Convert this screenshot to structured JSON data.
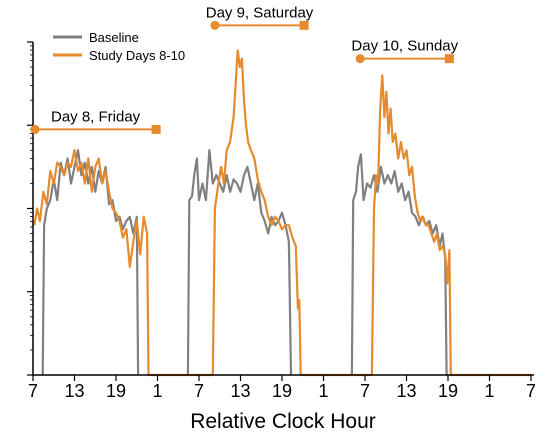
{
  "colors": {
    "baseline": "#808080",
    "study": "#E68A2E",
    "axis": "#000000"
  },
  "chart_data": {
    "type": "line",
    "title": "",
    "xlabel": "Relative Clock Hour",
    "ylabel": "",
    "x_tick_labels": [
      "7",
      "13",
      "19",
      "1",
      "7",
      "13",
      "19",
      "1",
      "7",
      "13",
      "19",
      "1",
      "7"
    ],
    "xlim": [
      0,
      72
    ],
    "y_scale": "log",
    "ylim": [
      0,
      4
    ],
    "y_tick_values": [
      0,
      1,
      2,
      3,
      4
    ],
    "y_tick_labels": [],
    "grid": false,
    "legend": {
      "position": "top-left",
      "entries": [
        "Baseline",
        "Study Days 8-10"
      ]
    },
    "annotations": [
      {
        "text": "Day 8, Friday",
        "x_start": 0.3,
        "x_end": 17.8,
        "y": 2.95
      },
      {
        "text": "Day 9, Saturday",
        "x_start": 26.3,
        "x_end": 39.2,
        "y": 4.2
      },
      {
        "text": "Day 10, Sunday",
        "x_start": 47.3,
        "x_end": 60.2,
        "y": 3.8
      }
    ],
    "series": [
      {
        "name": "Baseline",
        "color": "#808080",
        "segments": [
          [
            [
              1.4,
              0
            ],
            [
              1.6,
              1.8
            ],
            [
              2.0,
              2.0
            ],
            [
              2.5,
              2.1
            ],
            [
              3.0,
              2.35
            ],
            [
              3.5,
              2.1
            ],
            [
              4.0,
              2.55
            ],
            [
              4.5,
              2.4
            ],
            [
              5.0,
              2.6
            ],
            [
              5.5,
              2.3
            ],
            [
              6.0,
              2.5
            ],
            [
              6.5,
              2.7
            ],
            [
              7.0,
              2.4
            ],
            [
              7.5,
              2.55
            ],
            [
              8.0,
              2.3
            ],
            [
              8.5,
              2.5
            ],
            [
              9.0,
              2.2
            ],
            [
              9.5,
              2.45
            ],
            [
              10.0,
              2.3
            ],
            [
              10.5,
              2.5
            ],
            [
              11.0,
              2.05
            ],
            [
              11.5,
              2.1
            ],
            [
              12.0,
              1.85
            ],
            [
              12.5,
              1.9
            ],
            [
              13.0,
              1.75
            ],
            [
              13.5,
              1.85
            ],
            [
              14.0,
              1.9
            ],
            [
              14.5,
              1.7
            ],
            [
              15.0,
              1.9
            ],
            [
              15.2,
              0
            ]
          ],
          [
            [
              22.4,
              0
            ],
            [
              22.6,
              2.1
            ],
            [
              23.0,
              2.15
            ],
            [
              23.3,
              2.4
            ],
            [
              23.7,
              2.6
            ],
            [
              24.0,
              2.1
            ],
            [
              24.5,
              2.3
            ],
            [
              25.0,
              2.1
            ],
            [
              25.5,
              2.7
            ],
            [
              26.0,
              2.3
            ],
            [
              26.5,
              2.4
            ],
            [
              27.0,
              2.3
            ],
            [
              27.5,
              2.2
            ],
            [
              28.0,
              2.4
            ],
            [
              28.5,
              2.2
            ],
            [
              29.0,
              2.35
            ],
            [
              29.5,
              2.3
            ],
            [
              30.0,
              2.2
            ],
            [
              30.5,
              2.4
            ],
            [
              31.0,
              2.5
            ],
            [
              31.5,
              2.3
            ],
            [
              32.0,
              2.1
            ],
            [
              32.5,
              2.3
            ],
            [
              33.0,
              1.95
            ],
            [
              33.5,
              1.85
            ],
            [
              34.0,
              1.7
            ],
            [
              34.5,
              1.9
            ],
            [
              35.0,
              1.8
            ],
            [
              35.5,
              1.85
            ],
            [
              36.0,
              1.95
            ],
            [
              36.5,
              1.8
            ],
            [
              37.0,
              1.6
            ],
            [
              37.3,
              0
            ]
          ],
          [
            [
              46.1,
              0
            ],
            [
              46.3,
              2.1
            ],
            [
              46.7,
              2.2
            ],
            [
              47.0,
              2.5
            ],
            [
              47.4,
              2.65
            ],
            [
              47.8,
              2.1
            ],
            [
              48.3,
              2.3
            ],
            [
              48.8,
              2.25
            ],
            [
              49.3,
              2.4
            ],
            [
              49.8,
              2.2
            ],
            [
              50.3,
              2.5
            ],
            [
              50.8,
              2.3
            ],
            [
              51.3,
              2.4
            ],
            [
              51.8,
              2.3
            ],
            [
              52.3,
              2.45
            ],
            [
              52.8,
              2.2
            ],
            [
              53.3,
              2.3
            ],
            [
              53.8,
              2.1
            ],
            [
              54.3,
              2.2
            ],
            [
              54.8,
              1.95
            ],
            [
              55.3,
              1.9
            ],
            [
              55.8,
              1.8
            ],
            [
              56.3,
              1.9
            ],
            [
              56.8,
              1.8
            ],
            [
              57.3,
              1.85
            ],
            [
              57.8,
              1.7
            ],
            [
              58.3,
              1.8
            ],
            [
              58.8,
              1.55
            ],
            [
              59.2,
              1.7
            ],
            [
              59.6,
              1.4
            ],
            [
              59.8,
              0
            ]
          ]
        ]
      },
      {
        "name": "Study Days 8-10",
        "color": "#E68A2E",
        "segments": [
          [
            [
              0.2,
              1.8
            ],
            [
              0.6,
              2.0
            ],
            [
              1.0,
              1.85
            ],
            [
              1.5,
              2.2
            ],
            [
              2.0,
              2.05
            ],
            [
              2.5,
              2.45
            ],
            [
              3.0,
              2.3
            ],
            [
              3.5,
              2.55
            ],
            [
              4.0,
              2.5
            ],
            [
              4.5,
              2.4
            ],
            [
              5.0,
              2.55
            ],
            [
              5.5,
              2.5
            ],
            [
              6.0,
              2.7
            ],
            [
              6.5,
              2.45
            ],
            [
              7.0,
              2.55
            ],
            [
              7.5,
              2.3
            ],
            [
              8.0,
              2.6
            ],
            [
              8.5,
              2.2
            ],
            [
              9.0,
              2.5
            ],
            [
              9.5,
              2.6
            ],
            [
              10.0,
              2.3
            ],
            [
              10.5,
              2.45
            ],
            [
              11.0,
              2.2
            ],
            [
              11.5,
              2.0
            ],
            [
              12.0,
              1.95
            ],
            [
              12.5,
              1.85
            ],
            [
              13.0,
              1.65
            ],
            [
              13.5,
              1.75
            ],
            [
              14.0,
              1.3
            ],
            [
              14.5,
              1.6
            ],
            [
              15.0,
              1.85
            ],
            [
              15.5,
              1.45
            ],
            [
              16.0,
              1.9
            ],
            [
              16.5,
              1.7
            ],
            [
              16.7,
              0
            ],
            [
              19.0,
              0
            ],
            [
              25.0,
              0
            ],
            [
              26.0,
              0
            ],
            [
              26.3,
              2.0
            ],
            [
              26.8,
              2.3
            ],
            [
              27.2,
              2.5
            ],
            [
              27.6,
              2.3
            ],
            [
              28.0,
              2.7
            ],
            [
              28.5,
              2.8
            ],
            [
              29.0,
              3.1
            ],
            [
              29.3,
              3.5
            ],
            [
              29.6,
              3.9
            ],
            [
              29.9,
              3.7
            ],
            [
              30.2,
              3.8
            ],
            [
              30.5,
              3.3
            ],
            [
              30.8,
              3.0
            ],
            [
              31.1,
              2.8
            ],
            [
              31.5,
              2.7
            ],
            [
              32.0,
              2.6
            ],
            [
              32.5,
              2.35
            ],
            [
              33.0,
              2.2
            ],
            [
              33.5,
              2.1
            ],
            [
              34.0,
              1.9
            ],
            [
              34.5,
              1.8
            ],
            [
              35.0,
              1.9
            ],
            [
              35.5,
              1.85
            ],
            [
              36.0,
              1.75
            ],
            [
              36.5,
              1.8
            ],
            [
              37.0,
              1.8
            ],
            [
              37.5,
              1.65
            ],
            [
              38.0,
              1.55
            ],
            [
              38.3,
              0.8
            ],
            [
              38.5,
              0.9
            ],
            [
              38.7,
              0
            ],
            [
              40.0,
              0
            ],
            [
              43.0,
              0
            ],
            [
              49.0,
              0
            ],
            [
              49.3,
              2.0
            ],
            [
              49.6,
              2.4
            ],
            [
              49.9,
              2.3
            ],
            [
              50.2,
              3.2
            ],
            [
              50.5,
              3.6
            ],
            [
              50.8,
              3.1
            ],
            [
              51.1,
              3.4
            ],
            [
              51.4,
              2.9
            ],
            [
              51.7,
              3.2
            ],
            [
              52.0,
              2.8
            ],
            [
              52.4,
              2.9
            ],
            [
              52.8,
              2.6
            ],
            [
              53.2,
              2.8
            ],
            [
              53.6,
              2.6
            ],
            [
              54.0,
              2.7
            ],
            [
              54.4,
              2.4
            ],
            [
              54.8,
              2.5
            ],
            [
              55.2,
              2.15
            ],
            [
              55.6,
              1.95
            ],
            [
              56.0,
              1.85
            ],
            [
              56.4,
              1.9
            ],
            [
              56.8,
              1.8
            ],
            [
              57.2,
              1.8
            ],
            [
              57.6,
              1.7
            ],
            [
              58.0,
              1.6
            ],
            [
              58.4,
              1.7
            ],
            [
              58.8,
              1.5
            ],
            [
              59.2,
              1.55
            ],
            [
              59.6,
              1.45
            ],
            [
              59.9,
              1.1
            ],
            [
              60.2,
              1.5
            ],
            [
              60.4,
              0
            ],
            [
              61.0,
              0
            ],
            [
              67.0,
              0
            ],
            [
              72.0,
              0
            ]
          ]
        ]
      }
    ]
  }
}
